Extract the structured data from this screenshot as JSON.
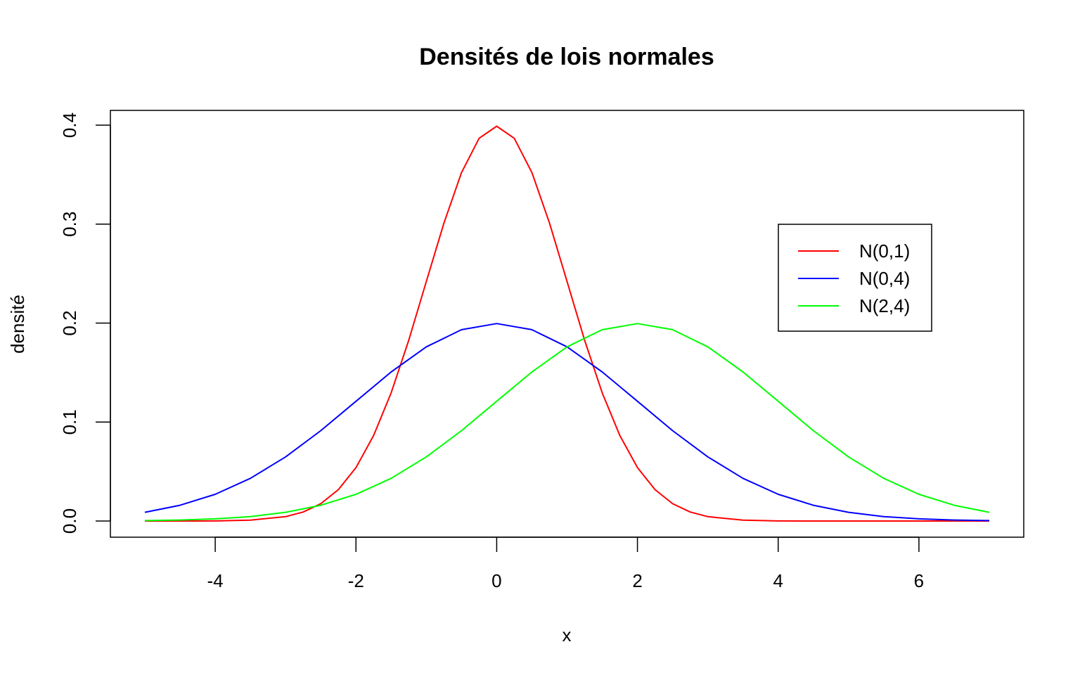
{
  "chart_data": {
    "type": "line",
    "title": "Densités de lois normales",
    "xlabel": "x",
    "ylabel": "densité",
    "xlim": [
      -5,
      7
    ],
    "ylim": [
      0,
      0.4
    ],
    "x_ticks": [
      "-4",
      "-2",
      "0",
      "2",
      "4",
      "6"
    ],
    "y_ticks": [
      "0.0",
      "0.1",
      "0.2",
      "0.3",
      "0.4"
    ],
    "legend_position": "right",
    "series": [
      {
        "name": "N(0,1)",
        "color": "#ff0000",
        "x": [
          -5,
          -4.5,
          -4,
          -3.5,
          -3,
          -2.75,
          -2.5,
          -2.25,
          -2,
          -1.75,
          -1.5,
          -1.25,
          -1,
          -0.75,
          -0.5,
          -0.25,
          0,
          0.25,
          0.5,
          0.75,
          1,
          1.25,
          1.5,
          1.75,
          2,
          2.25,
          2.5,
          2.75,
          3,
          3.5,
          4,
          4.5,
          5,
          5.5,
          6,
          6.5,
          7
        ],
        "y": [
          0.0,
          0.0,
          0.0001,
          0.0009,
          0.0044,
          0.0091,
          0.0175,
          0.0317,
          0.054,
          0.0863,
          0.1295,
          0.1826,
          0.242,
          0.3011,
          0.3521,
          0.3867,
          0.3989,
          0.3867,
          0.3521,
          0.3011,
          0.242,
          0.1826,
          0.1295,
          0.0863,
          0.054,
          0.0317,
          0.0175,
          0.0091,
          0.0044,
          0.0009,
          0.0001,
          0.0,
          0.0,
          0.0,
          0.0,
          0.0,
          0.0
        ]
      },
      {
        "name": "N(0,4)",
        "color": "#0000ff",
        "x": [
          -5,
          -4.5,
          -4,
          -3.5,
          -3,
          -2.5,
          -2,
          -1.5,
          -1,
          -0.5,
          0,
          0.5,
          1,
          1.5,
          2,
          2.5,
          3,
          3.5,
          4,
          4.5,
          5,
          5.5,
          6,
          6.5,
          7
        ],
        "y": [
          0.0088,
          0.0159,
          0.027,
          0.0431,
          0.0648,
          0.0913,
          0.121,
          0.1506,
          0.176,
          0.1933,
          0.1995,
          0.1933,
          0.176,
          0.1506,
          0.121,
          0.0913,
          0.0648,
          0.0431,
          0.027,
          0.0159,
          0.0088,
          0.0045,
          0.0022,
          0.001,
          0.0004
        ]
      },
      {
        "name": "N(2,4)",
        "color": "#00ff00",
        "x": [
          -5,
          -4.5,
          -4,
          -3.5,
          -3,
          -2.5,
          -2,
          -1.5,
          -1,
          -0.5,
          0,
          0.5,
          1,
          1.5,
          2,
          2.5,
          3,
          3.5,
          4,
          4.5,
          5,
          5.5,
          6,
          6.5,
          7
        ],
        "y": [
          0.0004,
          0.001,
          0.0022,
          0.0045,
          0.0088,
          0.0159,
          0.027,
          0.0431,
          0.0648,
          0.0913,
          0.121,
          0.1506,
          0.176,
          0.1933,
          0.1995,
          0.1933,
          0.176,
          0.1506,
          0.121,
          0.0913,
          0.0648,
          0.0431,
          0.027,
          0.0159,
          0.0088
        ]
      }
    ]
  }
}
